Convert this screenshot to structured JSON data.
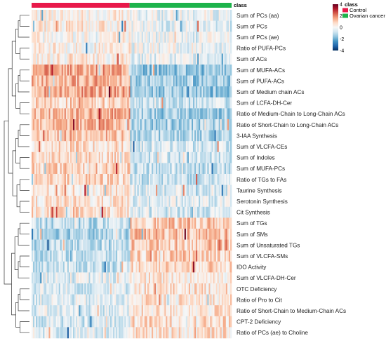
{
  "chart_data": {
    "type": "heatmap",
    "rows": [
      "Sum of PCs (aa)",
      "Sum of PCs",
      "Sum of PCs (ae)",
      "Ratio of PUFA-PCs",
      "Sum of ACs",
      "Sum of MUFA-ACs",
      "Sum of PUFA-ACs",
      "Sum of Medium chain ACs",
      "Sum of LCFA-DH-Cer",
      "Ratio of Medium-Chain to Long-Chain ACs",
      "Ratio of Short-Chain to Long-Chain ACs",
      "3-IAA Synthesis",
      "Sum of VLCFA-CEs",
      "Sum of Indoles",
      "Sum of MUFA-PCs",
      "Ratio of TGs to FAs",
      "Taurine Synthesis",
      "Serotonin Synthesis",
      "Cit Synthesis",
      "Sum of TGs",
      "Sum of SMs",
      "Sum of Unsaturated TGs",
      "Sum of VLCFA-SMs",
      "IDO Activity",
      "Sum of VLCFA-DH-Cer",
      "OTC Deficiency",
      "Ratio of Pro to Cit",
      "Ratio of Short-Chain to Medium-Chain ACs",
      "CPT-2 Deficiency",
      "Ratio of PCs (ae) to Choline"
    ],
    "class_annotation": {
      "label": "class",
      "groups": [
        {
          "name": "Control",
          "color": "#e8194a",
          "fraction": 0.49
        },
        {
          "name": "Ovarian cancer",
          "color": "#1db34b",
          "fraction": 0.51
        }
      ]
    },
    "group_trend": [
      0.15,
      0.2,
      0.15,
      0.1,
      0.2,
      0.9,
      0.85,
      0.9,
      0.5,
      0.8,
      0.8,
      0.7,
      0.4,
      0.45,
      0.55,
      0.5,
      0.3,
      0.3,
      0.35,
      -0.6,
      -0.7,
      -0.6,
      -0.55,
      -0.5,
      -0.25,
      -0.35,
      -0.3,
      -0.3,
      -0.4,
      -0.3
    ],
    "color_scale": {
      "min": -4,
      "max": 4,
      "ticks": [
        4,
        2,
        0,
        -2,
        -4
      ],
      "colors": [
        "#053061",
        "#2166ac",
        "#4393c3",
        "#92c5de",
        "#d1e5f0",
        "#f7f7f7",
        "#fddbc7",
        "#f4a582",
        "#d6604d",
        "#b2182b",
        "#67001f"
      ]
    },
    "legend_title": "class",
    "legend_entries": [
      "Control",
      "Ovarian cancer"
    ]
  }
}
